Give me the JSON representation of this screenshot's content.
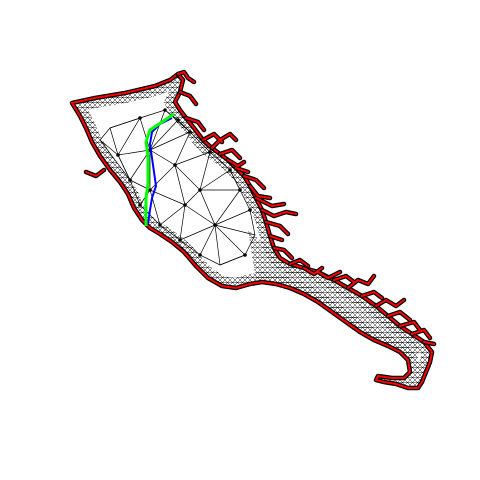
{
  "figure": {
    "background": "#ffffff",
    "colors": {
      "boundary": "#ff0000",
      "mesh": "#000000",
      "green_path": "#00ff00",
      "blue_path": "#0000ff"
    },
    "legend": "none",
    "axes": "hidden",
    "grid": false
  }
}
